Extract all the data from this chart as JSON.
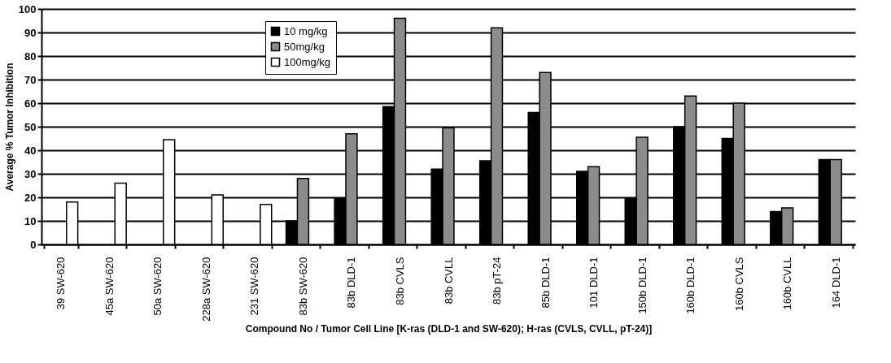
{
  "chart_data": {
    "type": "bar",
    "xlabel": "Compound No / Tumor Cell Line [K-ras (DLD-1 and SW-620); H-ras (CVLS, CVLL, pT-24)]",
    "ylabel": "Average % Tumor Inhibition",
    "categories": [
      "39 SW-620",
      "45a SW-620",
      "50a SW-620",
      "228a SW-620",
      "231 SW-620",
      "83b SW-620",
      "83b DLD-1",
      "83b CVLS",
      "83b CVLL",
      "83b pT-24",
      "85b DLD-1",
      "101 DLD-1",
      "150b DLD-1",
      "160b DLD-1",
      "160b CVLS",
      "160b CVLL",
      "164 DLD-1"
    ],
    "series": [
      {
        "name": "10  mg/kg",
        "color": "#000000",
        "values": [
          null,
          null,
          null,
          null,
          null,
          10,
          19.5,
          58.5,
          32,
          35.5,
          56,
          31,
          19.5,
          50,
          45,
          14,
          36
        ]
      },
      {
        "name": "50mg/kg",
        "color": "#8c8c8c",
        "values": [
          null,
          null,
          null,
          null,
          null,
          28,
          47,
          96,
          49.5,
          92,
          73,
          33,
          45.5,
          63,
          60,
          15.5,
          36
        ]
      },
      {
        "name": "100mg/kg",
        "color": "#ffffff",
        "values": [
          18,
          26,
          44.5,
          21,
          17,
          null,
          null,
          null,
          null,
          null,
          null,
          null,
          null,
          null,
          null,
          null,
          null
        ]
      }
    ],
    "ylim": [
      0,
      100
    ],
    "yticks": [
      0,
      10,
      20,
      30,
      40,
      50,
      60,
      70,
      80,
      90,
      100
    ],
    "grid": "y",
    "legend": "top left"
  }
}
